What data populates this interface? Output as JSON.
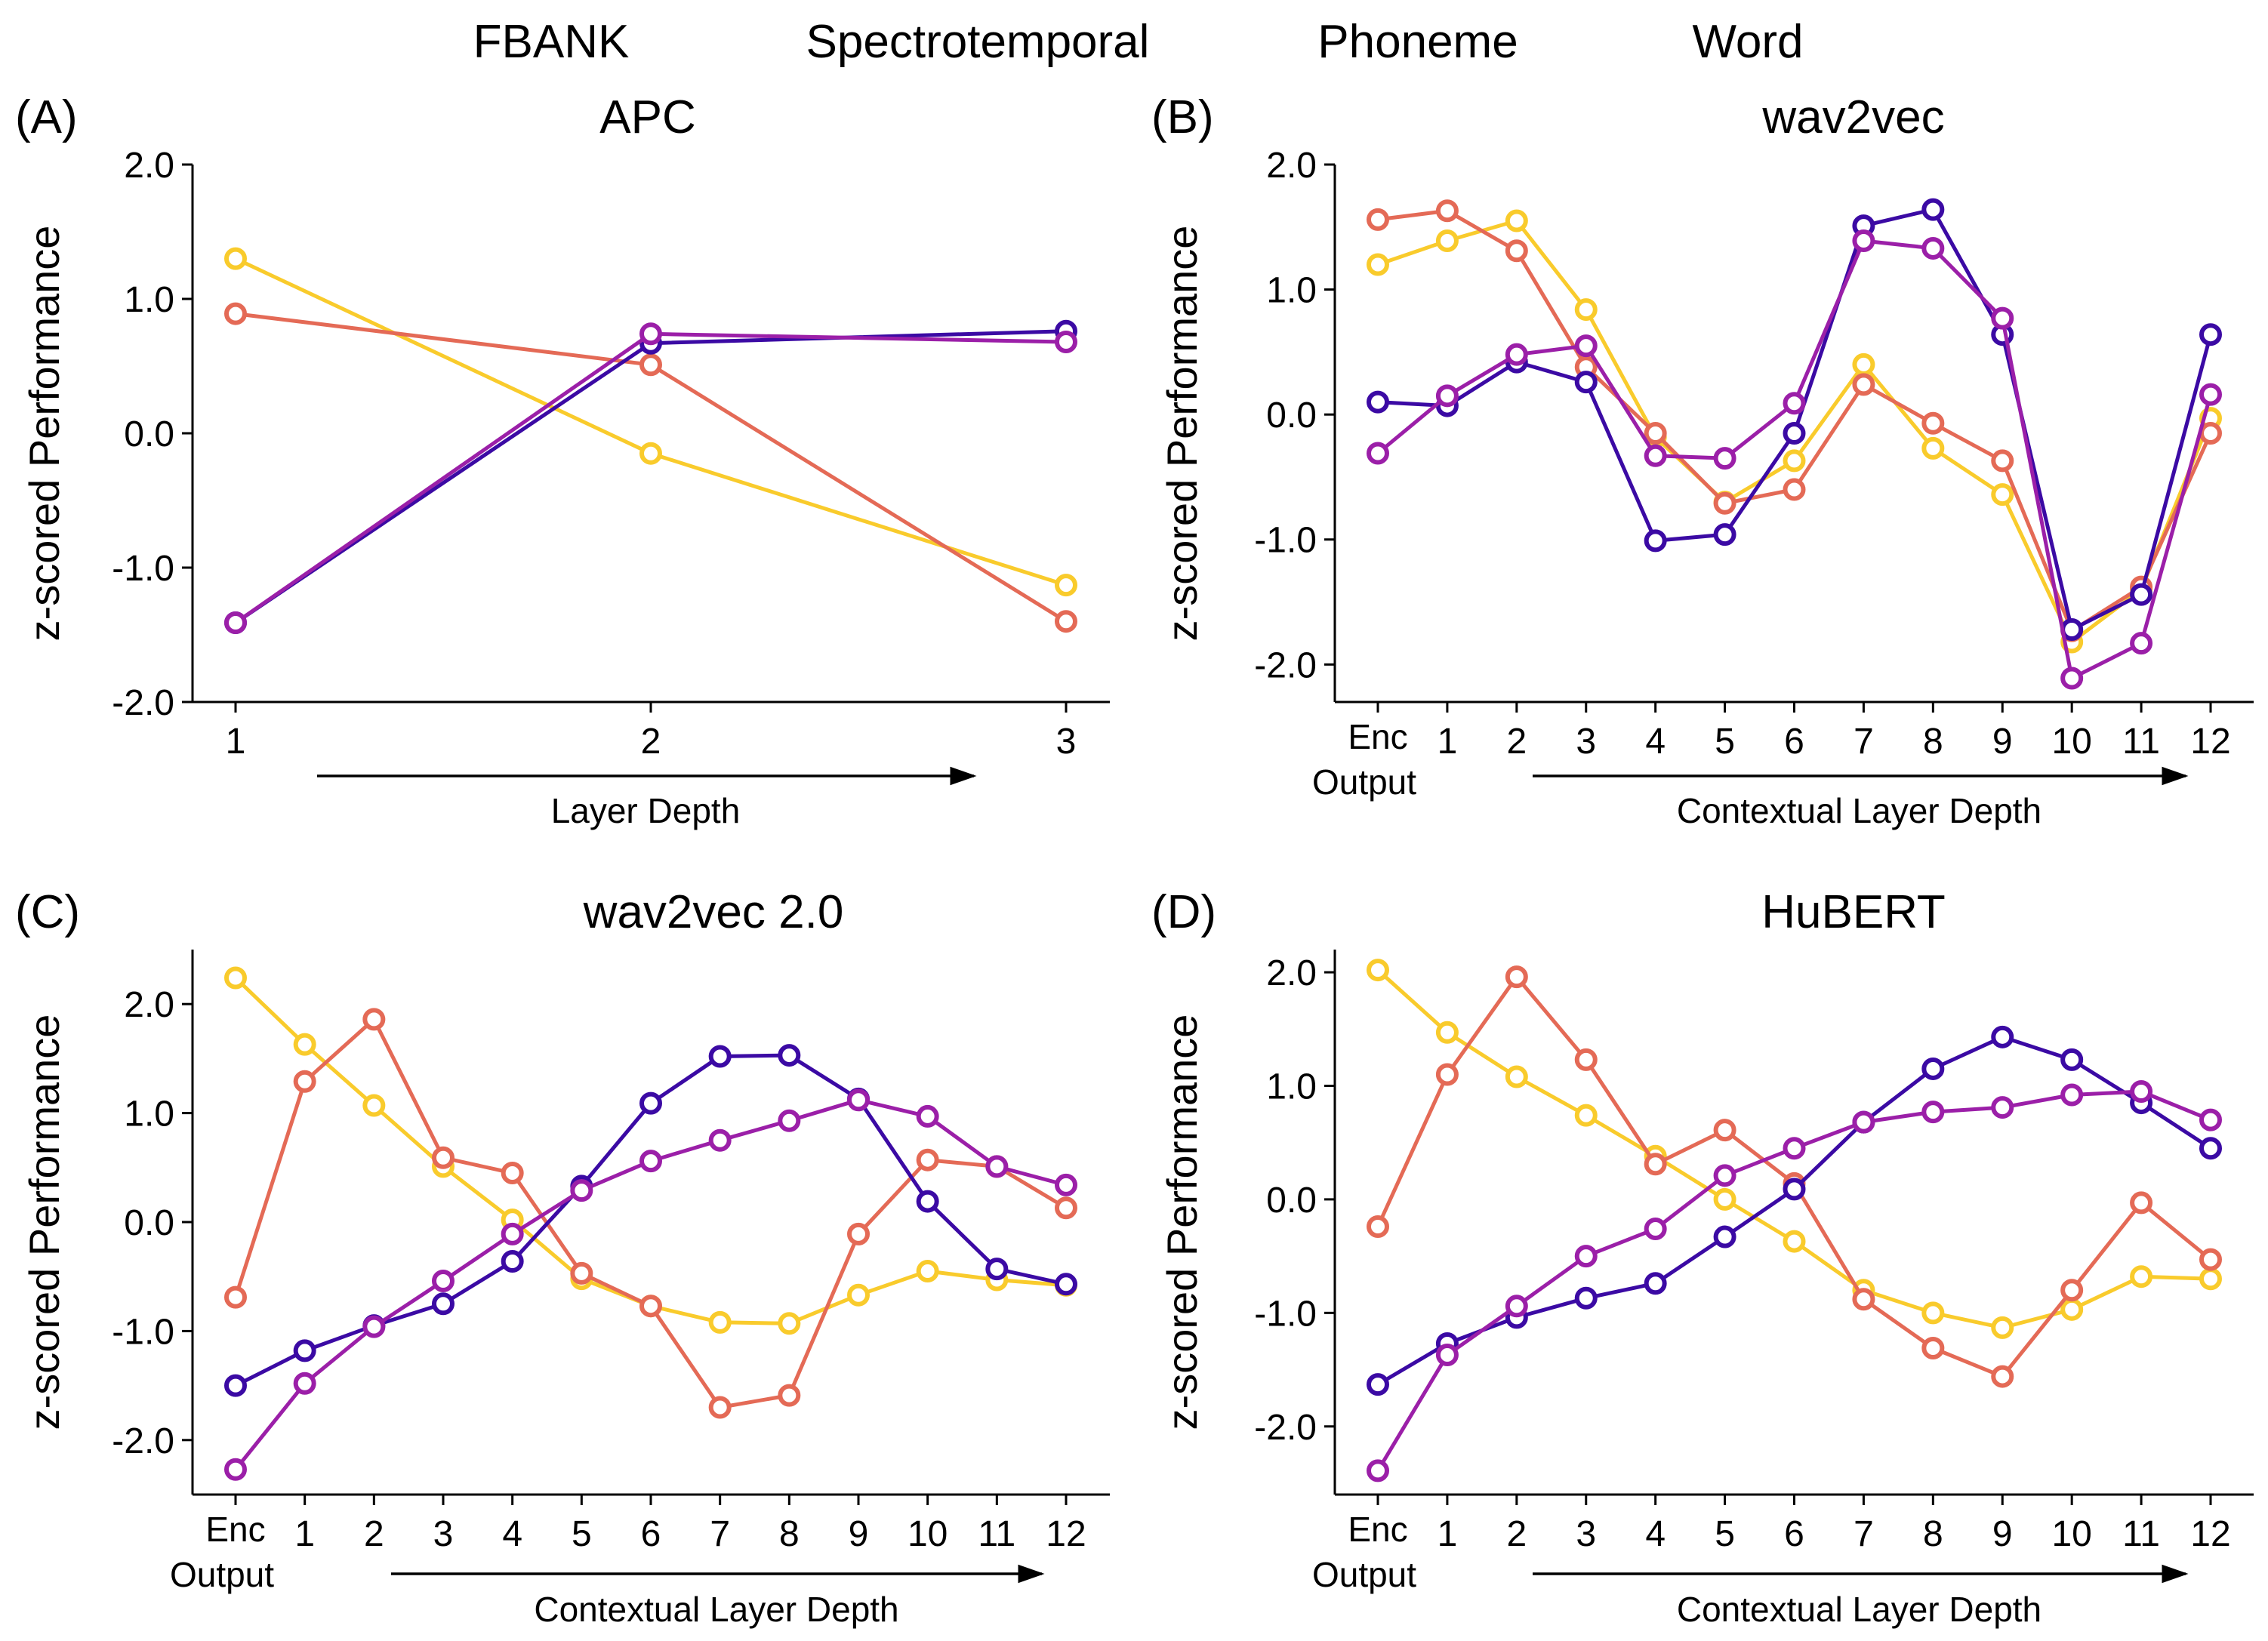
{
  "legend": [
    {
      "name": "FBANK",
      "color": "#F9CB2C"
    },
    {
      "name": "Spectrotemporal",
      "color": "#E46A56"
    },
    {
      "name": "Phoneme",
      "color": "#9B1FA8"
    },
    {
      "name": "Word",
      "color": "#3B0AA4"
    }
  ],
  "y_axis_label": "z-scored Performance",
  "chart_data": [
    {
      "type": "line",
      "panel": "(A)",
      "title": "APC",
      "categories": [
        "1",
        "2",
        "3"
      ],
      "xlabel": "Layer Depth",
      "ylim": [
        -2.0,
        2.0
      ],
      "yticks": [
        2.0,
        1.0,
        0.0,
        -1.0,
        -2.0
      ],
      "ytick_labels": [
        "2.0",
        "1.0",
        "0.0",
        "-1.0",
        "-2.0"
      ],
      "series": [
        {
          "name": "FBANK",
          "values": [
            1.3,
            -0.15,
            -1.13
          ]
        },
        {
          "name": "Spectrotemporal",
          "values": [
            0.89,
            0.51,
            -1.4
          ]
        },
        {
          "name": "Phoneme",
          "values": [
            -1.41,
            0.74,
            0.68
          ]
        },
        {
          "name": "Word",
          "values": [
            -1.41,
            0.67,
            0.76
          ]
        }
      ]
    },
    {
      "type": "line",
      "panel": "(B)",
      "title": "wav2vec",
      "categories": [
        "Enc Output",
        "1",
        "2",
        "3",
        "4",
        "5",
        "6",
        "7",
        "8",
        "9",
        "10",
        "11",
        "12"
      ],
      "xlabel": "Contextual Layer Depth",
      "ylim": [
        -2.3,
        2.0
      ],
      "yticks": [
        2.0,
        1.0,
        0.0,
        -1.0,
        -2.0
      ],
      "ytick_labels": [
        "2.0",
        "1.0",
        "0.0",
        "-1.0",
        "-2.0"
      ],
      "series": [
        {
          "name": "FBANK",
          "values": [
            1.2,
            1.39,
            1.55,
            0.84,
            -0.18,
            -0.7,
            -0.37,
            0.4,
            -0.27,
            -0.64,
            -1.82,
            -1.4,
            -0.03
          ]
        },
        {
          "name": "Spectrotemporal",
          "values": [
            1.56,
            1.63,
            1.31,
            0.38,
            -0.15,
            -0.71,
            -0.6,
            0.24,
            -0.07,
            -0.37,
            -1.73,
            -1.38,
            -0.15
          ]
        },
        {
          "name": "Phoneme",
          "values": [
            -0.31,
            0.15,
            0.48,
            0.55,
            -0.33,
            -0.35,
            0.09,
            1.39,
            1.33,
            0.77,
            -2.11,
            -1.83,
            0.16
          ]
        },
        {
          "name": "Word",
          "values": [
            0.1,
            0.07,
            0.42,
            0.26,
            -1.01,
            -0.96,
            -0.15,
            1.51,
            1.64,
            0.64,
            -1.72,
            -1.44,
            0.64
          ]
        }
      ]
    },
    {
      "type": "line",
      "panel": "(C)",
      "title": "wav2vec 2.0",
      "categories": [
        "Enc Output",
        "1",
        "2",
        "3",
        "4",
        "5",
        "6",
        "7",
        "8",
        "9",
        "10",
        "11",
        "12"
      ],
      "xlabel": "Contextual Layer Depth",
      "ylim": [
        -2.5,
        2.5
      ],
      "yticks": [
        2.0,
        1.0,
        0.0,
        -1.0,
        -2.0
      ],
      "ytick_labels": [
        "2.0",
        "1.0",
        "0.0",
        "-1.0",
        "-2.0"
      ],
      "series": [
        {
          "name": "FBANK",
          "values": [
            2.24,
            1.63,
            1.07,
            0.51,
            0.02,
            -0.52,
            -0.77,
            -0.92,
            -0.93,
            -0.67,
            -0.45,
            -0.53,
            -0.58
          ]
        },
        {
          "name": "Spectrotemporal",
          "values": [
            -0.69,
            1.29,
            1.86,
            0.59,
            0.45,
            -0.47,
            -0.77,
            -1.7,
            -1.59,
            -0.11,
            0.57,
            0.51,
            0.13
          ]
        },
        {
          "name": "Phoneme",
          "values": [
            -2.27,
            -1.48,
            -0.96,
            -0.54,
            -0.11,
            0.29,
            0.56,
            0.75,
            0.93,
            1.12,
            0.97,
            0.51,
            0.34
          ]
        },
        {
          "name": "Word",
          "values": [
            -1.5,
            -1.18,
            -0.95,
            -0.75,
            -0.36,
            0.33,
            1.09,
            1.52,
            1.53,
            1.13,
            0.19,
            -0.43,
            -0.57
          ]
        }
      ]
    },
    {
      "type": "line",
      "panel": "(D)",
      "title": "HuBERT",
      "categories": [
        "Enc Output",
        "1",
        "2",
        "3",
        "4",
        "5",
        "6",
        "7",
        "8",
        "9",
        "10",
        "11",
        "12"
      ],
      "xlabel": "Contextual Layer Depth",
      "ylim": [
        -2.6,
        2.2
      ],
      "yticks": [
        2.0,
        1.0,
        0.0,
        -1.0,
        -2.0
      ],
      "ytick_labels": [
        "2.0",
        "1.0",
        "0.0",
        "-1.0",
        "-2.0"
      ],
      "series": [
        {
          "name": "FBANK",
          "values": [
            2.02,
            1.47,
            1.08,
            0.74,
            0.38,
            0.0,
            -0.37,
            -0.8,
            -1.0,
            -1.13,
            -0.97,
            -0.68,
            -0.7
          ]
        },
        {
          "name": "Spectrotemporal",
          "values": [
            -0.24,
            1.1,
            1.96,
            1.23,
            0.31,
            0.61,
            0.14,
            -0.88,
            -1.31,
            -1.56,
            -0.8,
            -0.03,
            -0.53
          ]
        },
        {
          "name": "Phoneme",
          "values": [
            -2.39,
            -1.37,
            -0.94,
            -0.5,
            -0.26,
            0.21,
            0.45,
            0.68,
            0.77,
            0.81,
            0.92,
            0.95,
            0.7
          ]
        },
        {
          "name": "Word",
          "values": [
            -1.63,
            -1.27,
            -1.04,
            -0.87,
            -0.74,
            -0.33,
            0.09,
            0.68,
            1.15,
            1.43,
            1.23,
            0.85,
            0.45
          ]
        }
      ]
    }
  ]
}
